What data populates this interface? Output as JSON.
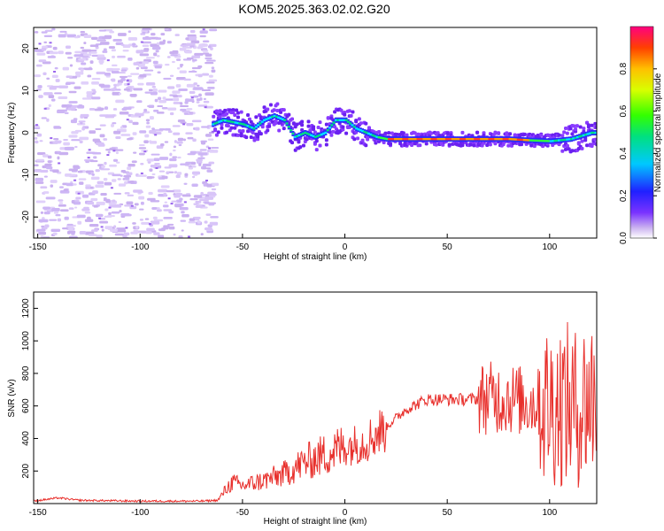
{
  "title": "KOM5.2025.363.02.02.G20",
  "chart_data": [
    {
      "type": "heatmap",
      "xlabel": "Height of straight line (km)",
      "ylabel": "Frequency (Hz)",
      "xlim": [
        -152,
        123
      ],
      "ylim": [
        -25,
        25
      ],
      "xticks": [
        -150,
        -100,
        -50,
        0,
        50,
        100
      ],
      "yticks": [
        -20,
        -10,
        0,
        10,
        20
      ],
      "colorbar": {
        "label": "Normalized spectral amplitude",
        "range": [
          0,
          1
        ],
        "ticks": [
          "0.0",
          "0.2",
          "0.4",
          "0.6",
          "0.8"
        ]
      },
      "ridge": {
        "heights": [
          -65,
          -60,
          -55,
          -50,
          -45,
          -40,
          -35,
          -30,
          -25,
          -20,
          -15,
          -10,
          -5,
          0,
          5,
          10,
          15,
          20,
          30,
          40,
          50,
          60,
          70,
          80,
          90,
          100,
          110,
          120
        ],
        "frequencies": [
          2,
          3,
          2.5,
          2,
          1,
          3,
          4,
          3,
          -1,
          0,
          -1,
          0,
          3,
          3,
          1,
          0,
          -1,
          -1.5,
          -1.5,
          -1.5,
          -1.5,
          -1.5,
          -1.5,
          -1.5,
          -1.8,
          -2,
          -1.5,
          0
        ]
      },
      "noise_region_km": [
        -152,
        -65
      ]
    },
    {
      "type": "line",
      "xlabel": "Height of straight line (km)",
      "ylabel": "SNR (v/v)",
      "xlim": [
        -152,
        123
      ],
      "ylim": [
        0,
        1300
      ],
      "xticks": [
        -150,
        -100,
        -50,
        0,
        50,
        100
      ],
      "yticks": [
        200,
        400,
        600,
        800,
        1000,
        1200
      ],
      "series": [
        {
          "name": "SNR",
          "color": "#e8302c",
          "envelope_x": [
            -152,
            -140,
            -130,
            -100,
            -70,
            -62,
            -58,
            -55,
            -50,
            -40,
            -30,
            -20,
            -10,
            0,
            10,
            20,
            30,
            40,
            50,
            60,
            70,
            80,
            90,
            95,
            100,
            105,
            110,
            115,
            118,
            123
          ],
          "envelope_y": [
            15,
            35,
            20,
            15,
            15,
            20,
            90,
            130,
            110,
            140,
            180,
            250,
            300,
            350,
            380,
            470,
            580,
            640,
            640,
            640,
            650,
            650,
            620,
            620,
            600,
            620,
            600,
            580,
            650,
            650
          ]
        }
      ]
    }
  ]
}
